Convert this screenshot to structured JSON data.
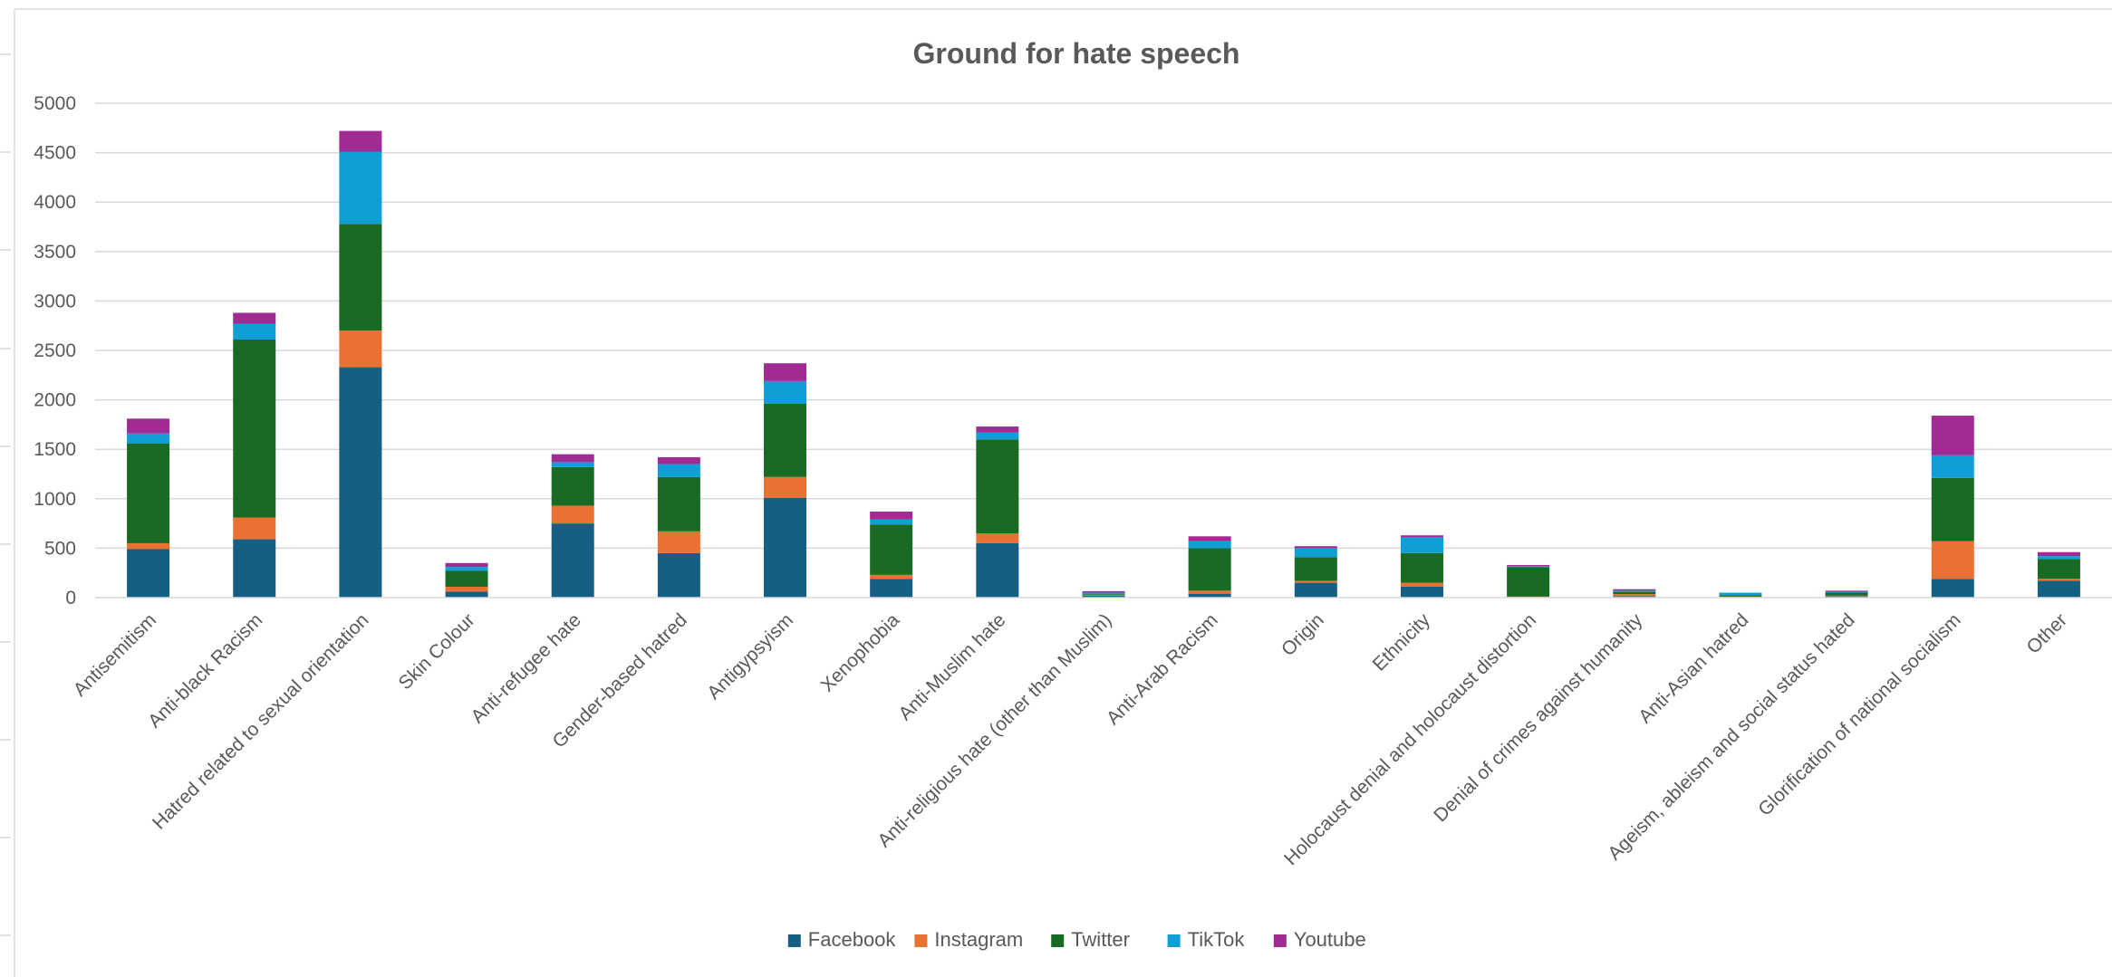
{
  "chart_data": {
    "type": "bar",
    "stacked": true,
    "title": "Ground for hate speech",
    "xlabel": "",
    "ylabel": "",
    "ylim": [
      0,
      5000
    ],
    "yticks": [
      0,
      500,
      1000,
      1500,
      2000,
      2500,
      3000,
      3500,
      4000,
      4500,
      5000
    ],
    "grid": true,
    "legend_position": "bottom",
    "categories": [
      "Antisemitism",
      "Anti-black Racism",
      "Hatred related to sexual orientation",
      "Skin Colour",
      "Anti-refugee hate",
      "Gender-based hatred",
      "Antigypsyism",
      "Xenophobia",
      "Anti-Muslim hate",
      "Anti-religious hate (other than Muslim)",
      "Anti-Arab Racism",
      "Origin",
      "Ethnicity",
      "Holocaust denial and holocaust distortion",
      "Denial of crimes against humanity",
      "Anti-Asian hatred",
      "Ageism, ableism and social status hated",
      "Glorification of national socialism",
      "Other"
    ],
    "series": [
      {
        "name": "Facebook",
        "color": "#156082",
        "values": [
          490,
          590,
          2330,
          60,
          750,
          450,
          1010,
          190,
          550,
          20,
          40,
          150,
          110,
          5,
          15,
          5,
          15,
          190,
          170
        ]
      },
      {
        "name": "Instagram",
        "color": "#E97132",
        "values": [
          60,
          220,
          370,
          50,
          180,
          220,
          210,
          40,
          100,
          5,
          30,
          20,
          40,
          5,
          20,
          5,
          5,
          380,
          20
        ]
      },
      {
        "name": "Twitter",
        "color": "#196B24",
        "values": [
          1010,
          1800,
          1080,
          160,
          390,
          550,
          740,
          510,
          950,
          10,
          430,
          240,
          300,
          300,
          20,
          15,
          30,
          640,
          200
        ]
      },
      {
        "name": "TikTok",
        "color": "#0F9ED5",
        "values": [
          100,
          160,
          730,
          40,
          50,
          130,
          230,
          50,
          70,
          15,
          70,
          90,
          160,
          10,
          15,
          25,
          10,
          230,
          30
        ]
      },
      {
        "name": "Youtube",
        "color": "#A02B93",
        "values": [
          150,
          110,
          210,
          40,
          80,
          70,
          180,
          80,
          60,
          15,
          50,
          20,
          20,
          10,
          15,
          0,
          10,
          400,
          40
        ]
      }
    ]
  }
}
